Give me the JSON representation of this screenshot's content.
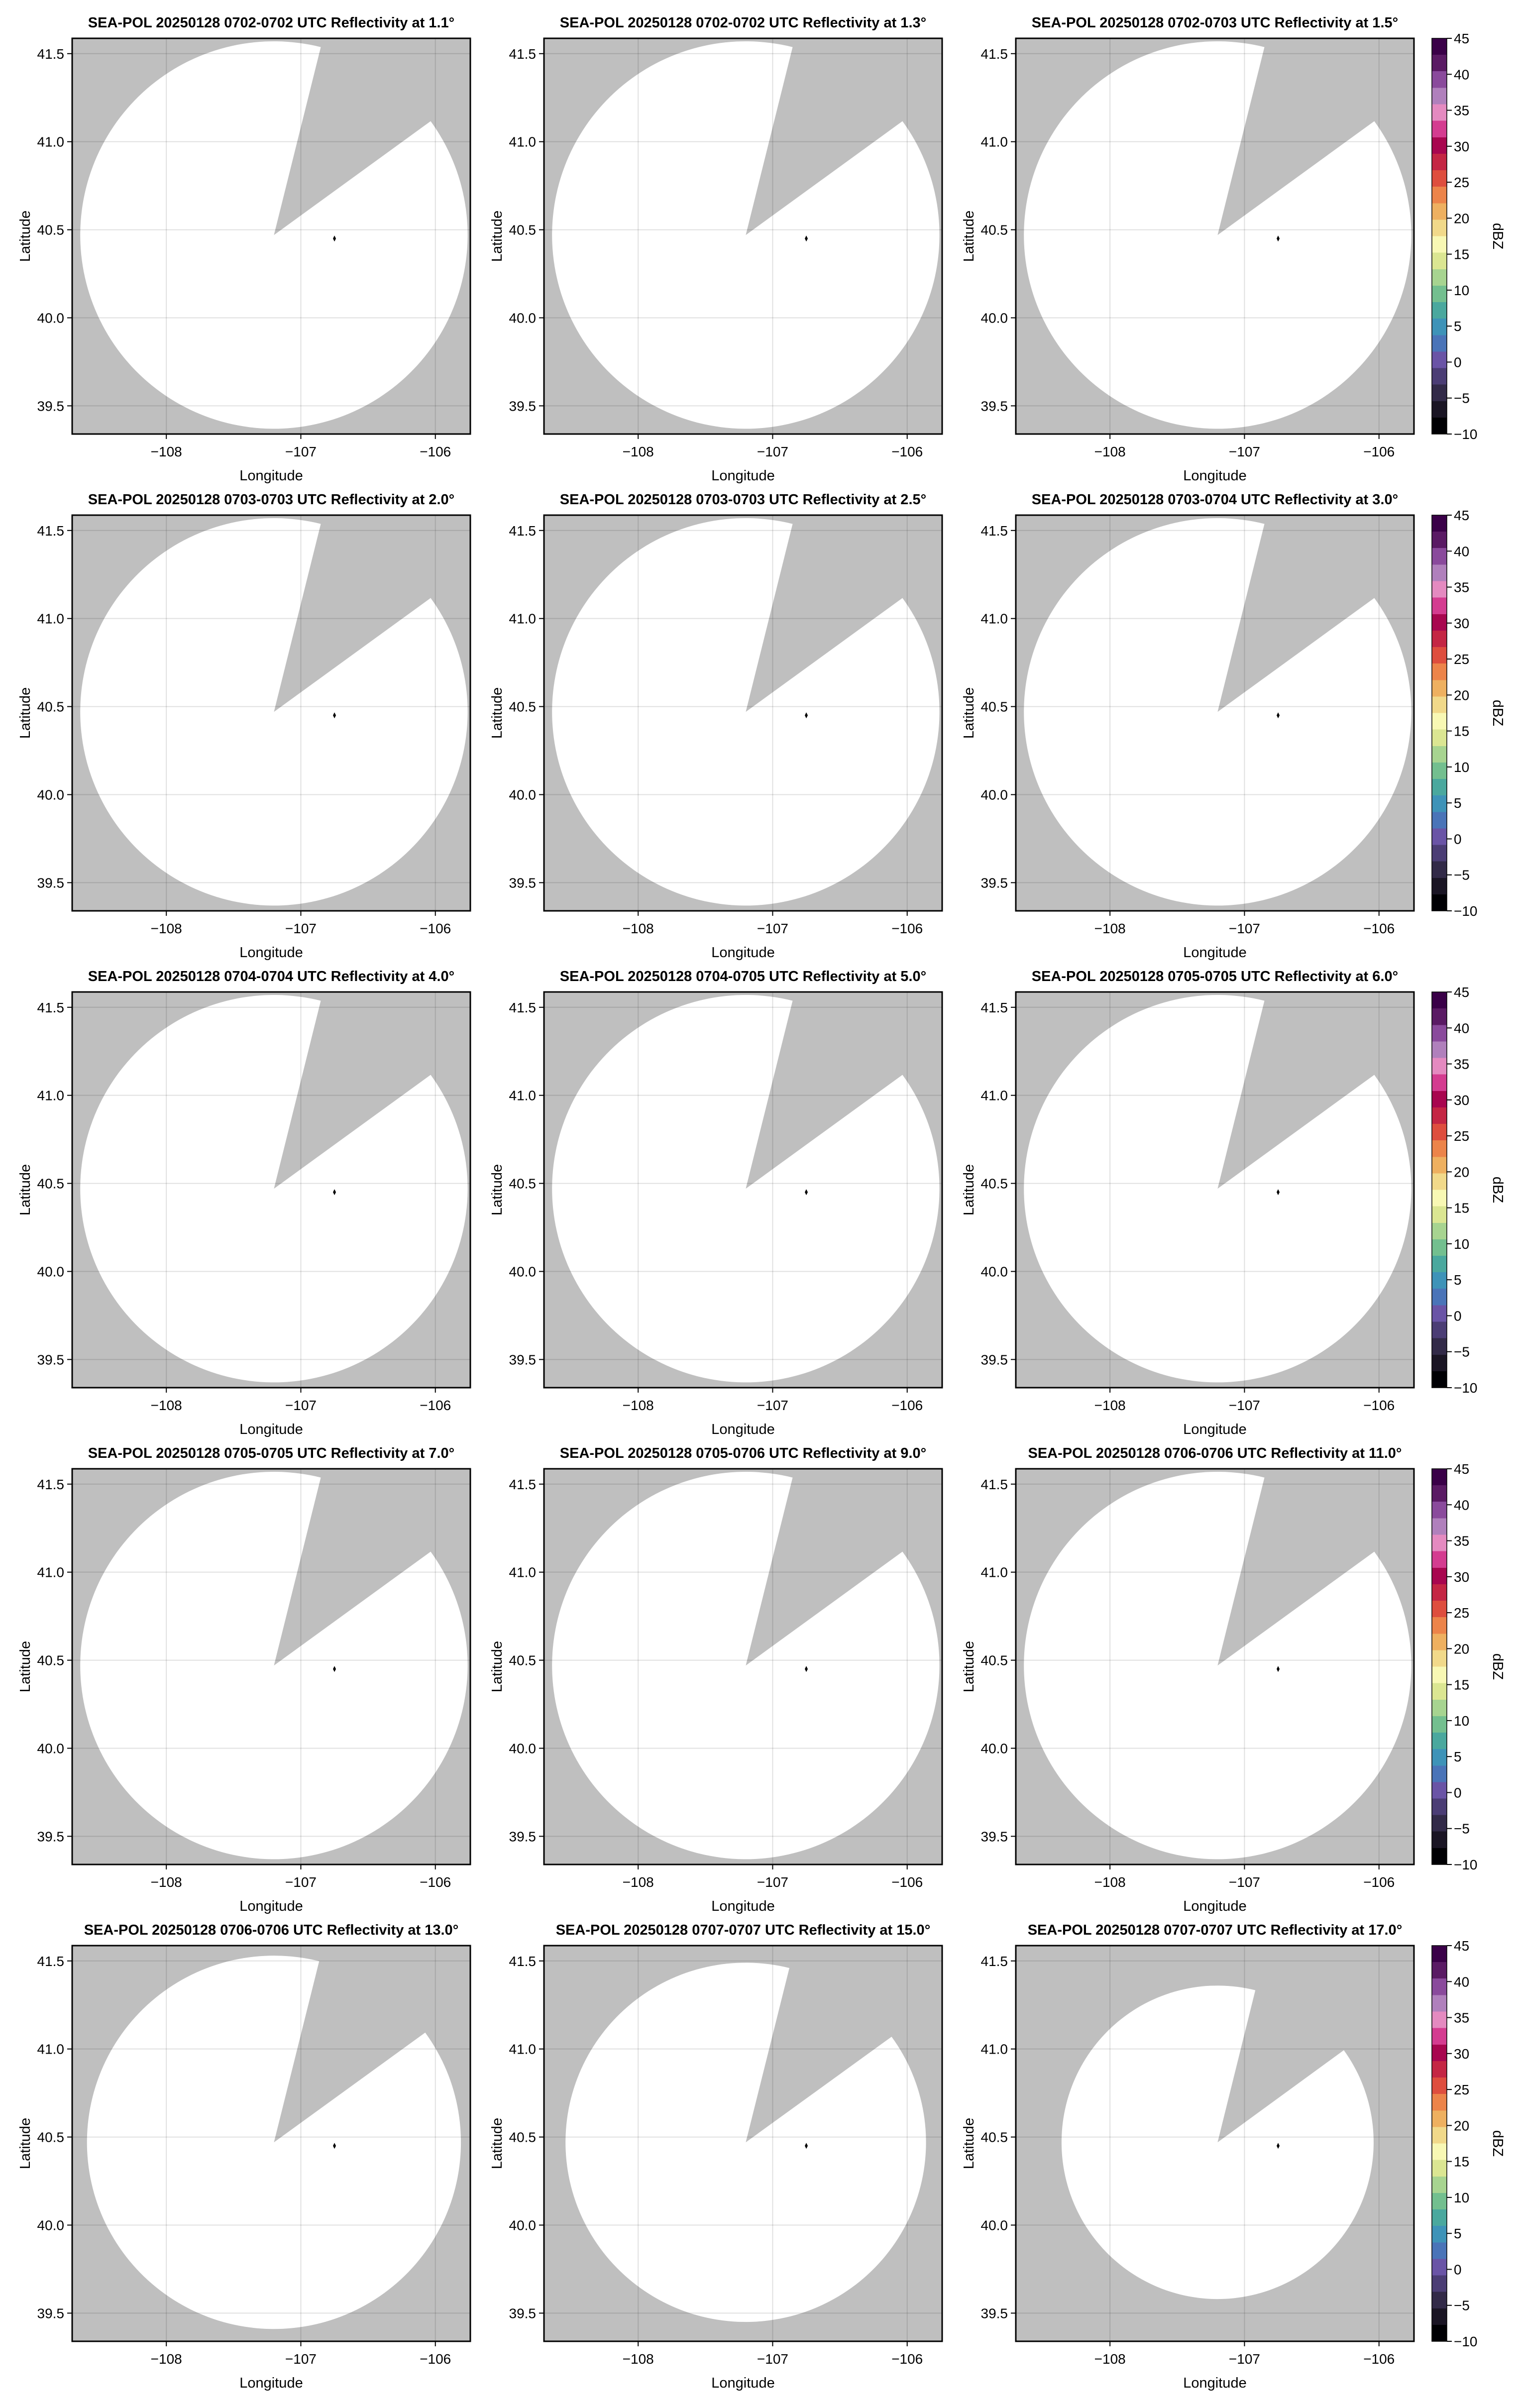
{
  "chart_data": [
    {
      "type": "heatmap",
      "title": "SEA-POL 20250128 0702-0702 UTC Reflectivity at 1.1°",
      "elevation": 1.1,
      "range_extent": {
        "lat_radius": 1.1,
        "lon_radius": 1.44
      }
    },
    {
      "type": "heatmap",
      "title": "SEA-POL 20250128 0702-0702 UTC Reflectivity at 1.3°",
      "elevation": 1.3,
      "range_extent": {
        "lat_radius": 1.1,
        "lon_radius": 1.44
      }
    },
    {
      "type": "heatmap",
      "title": "SEA-POL 20250128 0702-0703 UTC Reflectivity at 1.5°",
      "elevation": 1.5,
      "range_extent": {
        "lat_radius": 1.1,
        "lon_radius": 1.44
      },
      "colorbar": true
    },
    {
      "type": "heatmap",
      "title": "SEA-POL 20250128 0703-0703 UTC Reflectivity at 2.0°",
      "elevation": 2.0,
      "range_extent": {
        "lat_radius": 1.1,
        "lon_radius": 1.44
      }
    },
    {
      "type": "heatmap",
      "title": "SEA-POL 20250128 0703-0703 UTC Reflectivity at 2.5°",
      "elevation": 2.5,
      "range_extent": {
        "lat_radius": 1.1,
        "lon_radius": 1.44
      }
    },
    {
      "type": "heatmap",
      "title": "SEA-POL 20250128 0703-0704 UTC Reflectivity at 3.0°",
      "elevation": 3.0,
      "range_extent": {
        "lat_radius": 1.1,
        "lon_radius": 1.44
      },
      "colorbar": true
    },
    {
      "type": "heatmap",
      "title": "SEA-POL 20250128 0704-0704 UTC Reflectivity at 4.0°",
      "elevation": 4.0,
      "range_extent": {
        "lat_radius": 1.1,
        "lon_radius": 1.44
      }
    },
    {
      "type": "heatmap",
      "title": "SEA-POL 20250128 0704-0705 UTC Reflectivity at 5.0°",
      "elevation": 5.0,
      "range_extent": {
        "lat_radius": 1.1,
        "lon_radius": 1.44
      }
    },
    {
      "type": "heatmap",
      "title": "SEA-POL 20250128 0705-0705 UTC Reflectivity at 6.0°",
      "elevation": 6.0,
      "range_extent": {
        "lat_radius": 1.1,
        "lon_radius": 1.44
      },
      "colorbar": true
    },
    {
      "type": "heatmap",
      "title": "SEA-POL 20250128 0705-0705 UTC Reflectivity at 7.0°",
      "elevation": 7.0,
      "range_extent": {
        "lat_radius": 1.1,
        "lon_radius": 1.44
      }
    },
    {
      "type": "heatmap",
      "title": "SEA-POL 20250128 0705-0706 UTC Reflectivity at 9.0°",
      "elevation": 9.0,
      "range_extent": {
        "lat_radius": 1.1,
        "lon_radius": 1.44
      }
    },
    {
      "type": "heatmap",
      "title": "SEA-POL 20250128 0706-0706 UTC Reflectivity at 11.0°",
      "elevation": 11.0,
      "range_extent": {
        "lat_radius": 1.1,
        "lon_radius": 1.44
      },
      "colorbar": true
    },
    {
      "type": "heatmap",
      "title": "SEA-POL 20250128 0706-0706 UTC Reflectivity at 13.0°",
      "elevation": 13.0,
      "range_extent": {
        "lat_radius": 1.06,
        "lon_radius": 1.39
      }
    },
    {
      "type": "heatmap",
      "title": "SEA-POL 20250128 0707-0707 UTC Reflectivity at 15.0°",
      "elevation": 15.0,
      "range_extent": {
        "lat_radius": 1.02,
        "lon_radius": 1.34
      }
    },
    {
      "type": "heatmap",
      "title": "SEA-POL 20250128 0707-0707 UTC Reflectivity at 17.0°",
      "elevation": 17.0,
      "range_extent": {
        "lat_radius": 0.89,
        "lon_radius": 1.16
      },
      "colorbar": true
    }
  ],
  "shared": {
    "xlabel": "Longitude",
    "ylabel": "Latitude",
    "xlim": [
      -108.7,
      -105.74
    ],
    "ylim": [
      39.34,
      41.587
    ],
    "xticks": [
      -108,
      -107,
      -106
    ],
    "xtick_labels": [
      "−108",
      "−107",
      "−106"
    ],
    "yticks": [
      39.5,
      40.0,
      40.5,
      41.0,
      41.5
    ],
    "ytick_labels": [
      "39.5",
      "40.0",
      "40.5",
      "41.0",
      "41.5"
    ],
    "grid": true,
    "background_color": "#bfbfbf",
    "data_fill_color": "#ffffff",
    "radar_center": [
      -107.2,
      40.47
    ],
    "marker_point": [
      -106.75,
      40.45
    ],
    "blocked_sector_bearings_deg": [
      14,
      54
    ]
  },
  "colorbar": {
    "label": "dBZ",
    "range": [
      -10,
      45
    ],
    "ticks": [
      -10,
      -5,
      0,
      5,
      10,
      15,
      20,
      25,
      30,
      35,
      40,
      45
    ],
    "tick_labels": [
      "−10",
      "−5",
      "0",
      "5",
      "10",
      "15",
      "20",
      "25",
      "30",
      "35",
      "40",
      "45"
    ],
    "colors": [
      "#000004",
      "#1a1524",
      "#322a48",
      "#4b3d75",
      "#6a54a6",
      "#4a74b8",
      "#3e93b8",
      "#4aa89e",
      "#73bf8f",
      "#a7d490",
      "#dbe692",
      "#f8f8b4",
      "#f1d98a",
      "#eeb060",
      "#ec844a",
      "#de4e3e",
      "#c42644",
      "#a8064f",
      "#d43c90",
      "#e48ac0",
      "#b080bc",
      "#8a4a9c",
      "#5a1a64",
      "#3a0048"
    ]
  }
}
